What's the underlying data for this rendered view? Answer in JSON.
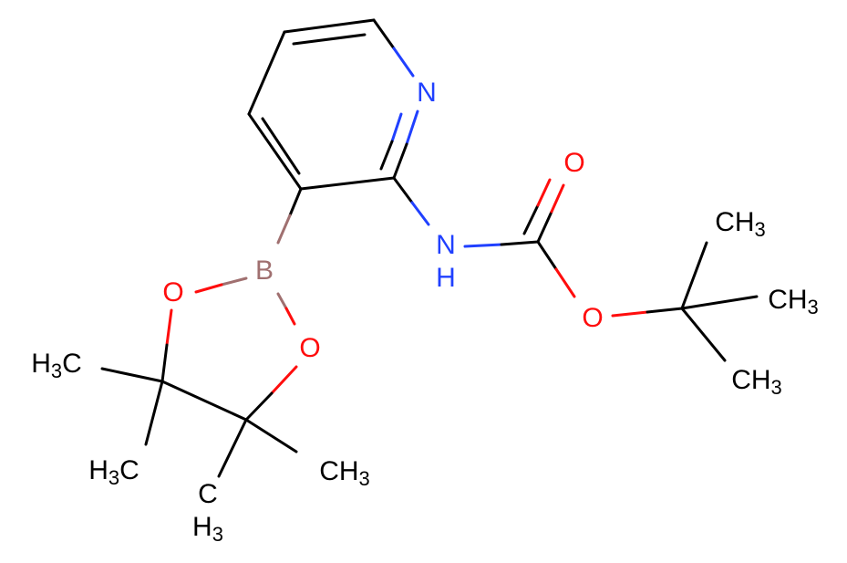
{
  "atoms": [
    "N",
    "NH",
    "O",
    "O",
    "CH3",
    "CH3",
    "CH3",
    "B",
    "O",
    "O",
    "H3C",
    "H3C",
    "CH3",
    "CH3"
  ]
}
